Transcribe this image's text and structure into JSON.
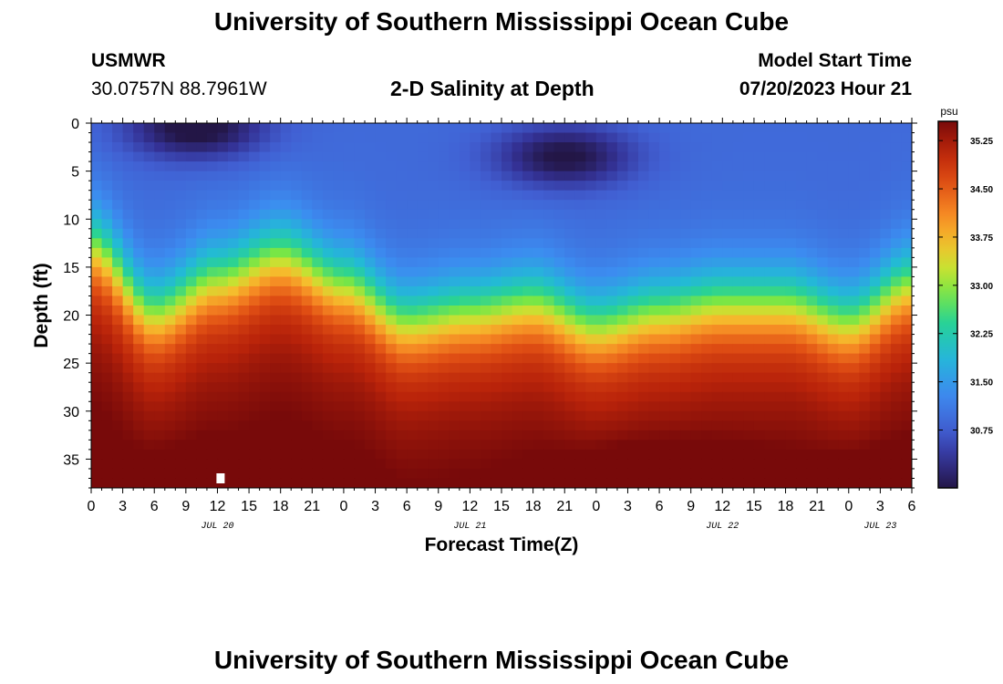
{
  "header": {
    "title": "University of Southern Mississippi Ocean Cube",
    "station": "USMWR",
    "coords": "30.0757N  88.7961W",
    "subtitle": "2-D Salinity at Depth",
    "model_label": "Model Start Time",
    "model_time": "07/20/2023 Hour 21"
  },
  "footer": {
    "title": "University of Southern Mississippi Ocean Cube"
  },
  "chart_data": {
    "type": "heatmap",
    "title": "2-D Salinity at Depth",
    "xlabel": "Forecast Time(Z)",
    "ylabel": "Depth (ft)",
    "x_range_hours": [
      0,
      78
    ],
    "x_tick_labels": [
      "0",
      "3",
      "6",
      "9",
      "12",
      "15",
      "18",
      "21",
      "0",
      "3",
      "6",
      "9",
      "12",
      "15",
      "18",
      "21",
      "0",
      "3",
      "6",
      "9",
      "12",
      "15",
      "18",
      "21",
      "0",
      "3",
      "6"
    ],
    "date_labels": [
      {
        "hour": 12,
        "text": "JUL 20"
      },
      {
        "hour": 36,
        "text": "JUL 21"
      },
      {
        "hour": 60,
        "text": "JUL 22"
      },
      {
        "hour": 75,
        "text": "JUL 23"
      }
    ],
    "ylim": [
      38,
      0
    ],
    "y_ticks": [
      0,
      5,
      10,
      15,
      20,
      25,
      30,
      35
    ],
    "colorbar": {
      "unit": "psu",
      "min": 29.85,
      "max": 35.55,
      "tick_labels": [
        "35.25",
        "34.50",
        "33.75",
        "33.00",
        "32.25",
        "31.50",
        "30.75"
      ],
      "tick_values": [
        35.25,
        34.5,
        33.75,
        33.0,
        32.25,
        31.5,
        30.75
      ]
    },
    "surface_salinity_psu": 30.9,
    "bottom_salinity_psu": 35.3,
    "halocline_depth_ft": [
      {
        "hour": 0,
        "depth": 13
      },
      {
        "hour": 6,
        "depth": 20
      },
      {
        "hour": 12,
        "depth": 16.5
      },
      {
        "hour": 18,
        "depth": 14
      },
      {
        "hour": 24,
        "depth": 17
      },
      {
        "hour": 30,
        "depth": 21
      },
      {
        "hour": 36,
        "depth": 20
      },
      {
        "hour": 42,
        "depth": 19
      },
      {
        "hour": 48,
        "depth": 21.5
      },
      {
        "hour": 54,
        "depth": 20
      },
      {
        "hour": 60,
        "depth": 19
      },
      {
        "hour": 66,
        "depth": 19
      },
      {
        "hour": 72,
        "depth": 21
      },
      {
        "hour": 78,
        "depth": 17
      }
    ],
    "low_salinity_cores": [
      {
        "hour": 10,
        "depth": 0.5,
        "salinity": 29.9
      },
      {
        "hour": 45,
        "depth": 3.5,
        "salinity": 30.0
      }
    ],
    "high_salinity_cores": [
      {
        "hour": 12,
        "depth": 37,
        "salinity": 35.5
      },
      {
        "hour": 54,
        "depth": 36,
        "salinity": 35.5
      },
      {
        "hour": 78,
        "depth": 37,
        "salinity": 35.3
      }
    ],
    "marker": {
      "hour": 12.3,
      "depth": 37,
      "label": "station depth marker"
    }
  }
}
